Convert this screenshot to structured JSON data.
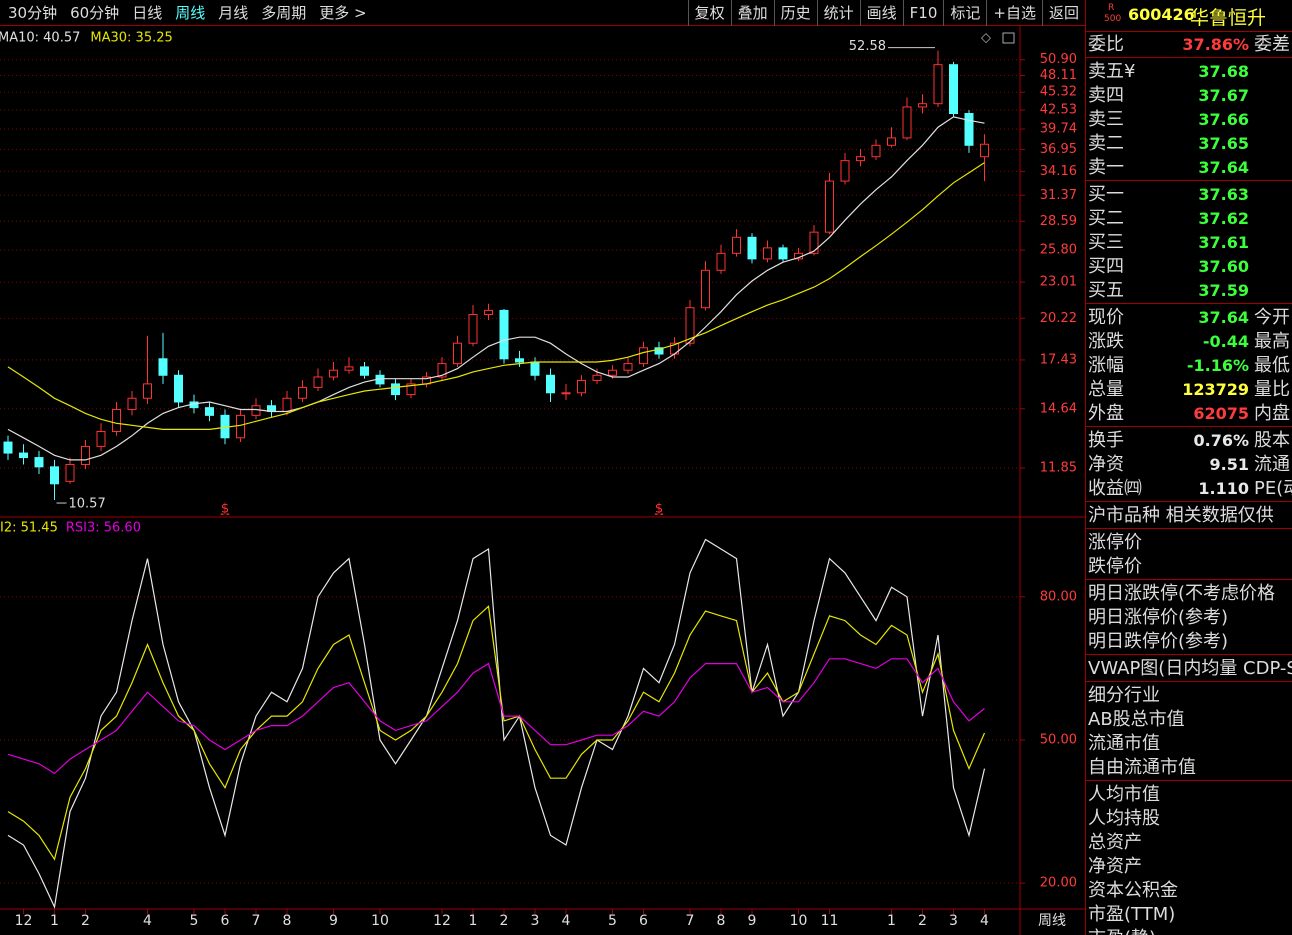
{
  "toolbar": {
    "periods": [
      {
        "label": "30分钟"
      },
      {
        "label": "60分钟"
      },
      {
        "label": "日线"
      },
      {
        "label": "周线",
        "active": true
      },
      {
        "label": "月线"
      },
      {
        "label": "多周期"
      },
      {
        "label": "更多 >"
      }
    ],
    "tools": [
      "复权",
      "叠加",
      "历史",
      "统计",
      "画线",
      "F10",
      "标记",
      "+自选",
      "返回"
    ]
  },
  "chart_data": [
    {
      "type": "candlestick",
      "scale": "log",
      "up_color": "#ff3232",
      "down_color": "#54ffff",
      "grid": true,
      "open": [
        13.0,
        12.5,
        12.3,
        11.9,
        11.3,
        12.0,
        12.8,
        13.5,
        14.6,
        15.2,
        17.5,
        16.5,
        15.0,
        14.7,
        14.3,
        13.2,
        14.3,
        14.8,
        14.5,
        15.2,
        15.8,
        16.4,
        16.8,
        17.0,
        16.5,
        16.0,
        15.4,
        16.0,
        16.4,
        17.2,
        18.5,
        20.5,
        20.8,
        17.5,
        17.3,
        16.5,
        15.5,
        15.5,
        16.2,
        16.5,
        16.8,
        17.2,
        18.2,
        17.8,
        18.5,
        21.0,
        24.0,
        25.5,
        27.0,
        25.0,
        26.0,
        25.0,
        25.5,
        27.5,
        33.0,
        35.5,
        36.0,
        37.5,
        38.5,
        43.0,
        43.5,
        50.0,
        42.0,
        36.0
      ],
      "high": [
        13.3,
        12.9,
        12.6,
        12.2,
        12.3,
        13.1,
        13.9,
        15.0,
        15.6,
        19.0,
        19.2,
        16.8,
        15.4,
        15.0,
        14.6,
        14.6,
        15.2,
        15.1,
        15.6,
        16.2,
        16.9,
        17.3,
        17.6,
        17.3,
        16.8,
        16.3,
        16.3,
        16.7,
        17.6,
        19.0,
        21.2,
        21.3,
        20.9,
        18.0,
        17.6,
        16.9,
        16.0,
        16.5,
        16.9,
        17.1,
        17.6,
        18.6,
        18.6,
        18.9,
        21.6,
        24.8,
        26.3,
        27.8,
        27.4,
        26.7,
        26.3,
        26.0,
        28.2,
        34.0,
        36.5,
        37.0,
        38.3,
        40.0,
        44.5,
        45.0,
        52.58,
        50.5,
        42.5,
        39.0
      ],
      "low": [
        12.2,
        12.0,
        11.6,
        10.57,
        11.2,
        11.8,
        12.6,
        13.3,
        14.3,
        14.9,
        16.0,
        14.7,
        14.4,
        14.0,
        12.9,
        13.0,
        14.1,
        14.2,
        14.3,
        15.0,
        15.6,
        16.2,
        16.6,
        16.3,
        15.8,
        15.1,
        15.2,
        15.8,
        16.2,
        17.0,
        18.3,
        20.1,
        17.2,
        17.0,
        16.2,
        15.0,
        15.1,
        15.3,
        16.0,
        16.3,
        16.6,
        17.0,
        17.5,
        17.5,
        18.3,
        20.8,
        23.7,
        25.2,
        24.6,
        24.7,
        24.7,
        24.8,
        25.3,
        27.3,
        32.6,
        34.8,
        35.6,
        37.2,
        38.2,
        42.0,
        43.0,
        41.5,
        36.5,
        33.0
      ],
      "close": [
        12.5,
        12.3,
        11.9,
        11.2,
        12.0,
        12.8,
        13.5,
        14.6,
        15.2,
        16.0,
        16.5,
        15.0,
        14.7,
        14.3,
        13.2,
        14.3,
        14.8,
        14.5,
        15.2,
        15.8,
        16.4,
        16.8,
        17.0,
        16.5,
        16.0,
        15.4,
        16.0,
        16.4,
        17.2,
        18.5,
        20.5,
        20.8,
        17.5,
        17.3,
        16.5,
        15.5,
        15.5,
        16.2,
        16.5,
        16.8,
        17.2,
        18.2,
        17.8,
        18.5,
        21.0,
        24.0,
        25.5,
        27.0,
        25.0,
        26.0,
        25.0,
        25.5,
        27.5,
        33.0,
        35.5,
        36.0,
        37.5,
        38.5,
        43.0,
        43.5,
        50.0,
        42.0,
        37.5,
        37.64
      ],
      "series": [
        {
          "name": "MA10",
          "label": "MA10: 40.57",
          "color": "#e0e0e0",
          "values": [
            13.6,
            13.2,
            12.8,
            12.4,
            12.2,
            12.2,
            12.4,
            12.8,
            13.3,
            13.9,
            14.4,
            14.7,
            14.9,
            15.0,
            14.8,
            14.6,
            14.6,
            14.5,
            14.5,
            14.7,
            15.0,
            15.4,
            15.8,
            16.1,
            16.3,
            16.3,
            16.3,
            16.3,
            16.5,
            16.9,
            17.6,
            18.3,
            18.7,
            18.9,
            18.9,
            18.5,
            17.8,
            17.2,
            16.7,
            16.4,
            16.4,
            16.8,
            17.2,
            17.8,
            18.6,
            19.6,
            20.7,
            22.0,
            23.1,
            24.0,
            24.7,
            25.1,
            25.7,
            27.0,
            28.7,
            30.4,
            32.0,
            33.5,
            35.5,
            37.5,
            40.0,
            41.5,
            41.0,
            40.57
          ]
        },
        {
          "name": "MA30",
          "label": "MA30: 35.25",
          "color": "#e6e600",
          "values": [
            17.0,
            16.4,
            15.8,
            15.2,
            14.8,
            14.4,
            14.1,
            13.9,
            13.8,
            13.7,
            13.6,
            13.6,
            13.6,
            13.6,
            13.7,
            13.8,
            14.0,
            14.2,
            14.4,
            14.7,
            15.0,
            15.2,
            15.4,
            15.6,
            15.7,
            15.8,
            15.9,
            16.0,
            16.2,
            16.4,
            16.7,
            16.9,
            17.1,
            17.2,
            17.3,
            17.3,
            17.3,
            17.3,
            17.3,
            17.4,
            17.6,
            17.9,
            18.1,
            18.4,
            18.8,
            19.2,
            19.7,
            20.2,
            20.7,
            21.2,
            21.6,
            22.1,
            22.6,
            23.3,
            24.2,
            25.2,
            26.2,
            27.3,
            28.5,
            29.8,
            31.3,
            32.8,
            34.0,
            35.25
          ]
        }
      ],
      "events": [
        null,
        null,
        null,
        null,
        null,
        null,
        null,
        null,
        null,
        null,
        null,
        null,
        null,
        null,
        "$",
        null,
        null,
        null,
        null,
        null,
        null,
        null,
        null,
        null,
        null,
        null,
        null,
        null,
        null,
        null,
        null,
        null,
        null,
        null,
        null,
        null,
        null,
        null,
        null,
        null,
        null,
        null,
        "$",
        null,
        null,
        null,
        null,
        null,
        null,
        null,
        null,
        null,
        null,
        null,
        null,
        null,
        null,
        null,
        null,
        null,
        null,
        null,
        null,
        null
      ],
      "ylim": [
        10.02,
        57.2
      ],
      "yticks": [
        11.85,
        14.64,
        17.43,
        20.22,
        23.01,
        {
          "value": 25.8,
          "label": "25.80"
        },
        28.59,
        31.37,
        34.16,
        36.95,
        39.74,
        42.53,
        45.32,
        48.11,
        {
          "value": 50.9,
          "label": "50.90"
        }
      ]
    },
    {
      "type": "line",
      "grid": true,
      "categories": [
        null,
        "12",
        null,
        "1",
        null,
        "2",
        null,
        null,
        null,
        "4",
        null,
        null,
        "5",
        null,
        "6",
        null,
        "7",
        null,
        "8",
        null,
        null,
        "9",
        null,
        null,
        "10",
        null,
        null,
        null,
        "12",
        null,
        "1",
        null,
        "2",
        null,
        "3",
        null,
        "4",
        null,
        null,
        "5",
        null,
        "6",
        null,
        null,
        "7",
        null,
        "8",
        null,
        "9",
        null,
        null,
        "10",
        null,
        "11",
        null,
        null,
        null,
        "1",
        null,
        "2",
        null,
        "3",
        null,
        "4"
      ],
      "period_label": "周线",
      "series": [
        {
          "color": "#e8e8e8",
          "values": [
            30,
            28,
            22,
            15,
            35,
            42,
            55,
            60,
            75,
            88,
            70,
            58,
            52,
            40,
            30,
            45,
            55,
            60,
            58,
            65,
            80,
            85,
            88,
            70,
            50,
            45,
            50,
            55,
            65,
            75,
            88,
            90,
            50,
            55,
            40,
            30,
            28,
            40,
            50,
            48,
            55,
            65,
            62,
            70,
            85,
            92,
            90,
            88,
            60,
            70,
            55,
            60,
            75,
            88,
            85,
            80,
            75,
            82,
            80,
            55,
            72,
            40,
            30,
            44
          ]
        },
        {
          "name": "I2",
          "label": "I2: 51.45",
          "color": "#e6e600",
          "values": [
            35,
            33,
            30,
            25,
            38,
            44,
            52,
            55,
            62,
            70,
            62,
            55,
            52,
            45,
            40,
            48,
            52,
            55,
            55,
            58,
            65,
            70,
            72,
            62,
            52,
            50,
            52,
            55,
            60,
            66,
            75,
            78,
            54,
            55,
            48,
            42,
            42,
            47,
            50,
            50,
            54,
            60,
            58,
            64,
            72,
            77,
            76,
            75,
            60,
            64,
            58,
            60,
            68,
            76,
            75,
            72,
            70,
            74,
            72,
            60,
            68,
            52,
            44,
            51.45
          ]
        },
        {
          "name": "RSI3",
          "label": "RSI3: 56.60",
          "color": "#e000e0",
          "values": [
            47,
            46,
            45,
            43,
            46,
            48,
            50,
            52,
            56,
            60,
            57,
            54,
            53,
            50,
            48,
            50,
            52,
            53,
            53,
            55,
            58,
            61,
            62,
            58,
            54,
            52,
            53,
            54,
            57,
            60,
            64,
            66,
            55,
            55,
            52,
            49,
            49,
            50,
            51,
            51,
            53,
            56,
            55,
            58,
            63,
            66,
            66,
            66,
            60,
            61,
            58,
            58,
            62,
            67,
            67,
            66,
            65,
            67,
            67,
            62,
            65,
            58,
            54,
            56.6
          ]
        }
      ],
      "ylim": [
        14.8,
        96.5
      ],
      "yticks": [
        {
          "value": 20,
          "label": "20.00"
        },
        {
          "value": 50,
          "label": "50.00"
        },
        {
          "value": 80,
          "label": "80.00"
        }
      ]
    }
  ],
  "quote": {
    "badge": [
      "R",
      "500"
    ],
    "code": "600426",
    "name": "华鲁恒升",
    "groups": [
      [
        {
          "label": "委比",
          "value": "37.86%",
          "color": "#ff3c3c",
          "extra": "委差"
        }
      ],
      [
        {
          "label": "卖五¥",
          "value": "37.68",
          "color": "#3cff3c"
        },
        {
          "label": "卖四",
          "value": "37.67",
          "color": "#3cff3c"
        },
        {
          "label": "卖三",
          "value": "37.66",
          "color": "#3cff3c"
        },
        {
          "label": "卖二",
          "value": "37.65",
          "color": "#3cff3c"
        },
        {
          "label": "卖一",
          "value": "37.64",
          "color": "#3cff3c"
        }
      ],
      [
        {
          "label": "买一",
          "value": "37.63",
          "color": "#3cff3c"
        },
        {
          "label": "买二",
          "value": "37.62",
          "color": "#3cff3c"
        },
        {
          "label": "买三",
          "value": "37.61",
          "color": "#3cff3c"
        },
        {
          "label": "买四",
          "value": "37.60",
          "color": "#3cff3c"
        },
        {
          "label": "买五",
          "value": "37.59",
          "color": "#3cff3c"
        }
      ],
      [
        {
          "label": "现价",
          "value": "37.64",
          "color": "#3cff3c",
          "extra": "今开"
        },
        {
          "label": "涨跌",
          "value": "-0.44",
          "color": "#3cff3c",
          "extra": "最高"
        },
        {
          "label": "涨幅",
          "value": "-1.16%",
          "color": "#3cff3c",
          "extra": "最低"
        },
        {
          "label": "总量",
          "value": "123729",
          "color": "#ffff3c",
          "extra": "量比"
        },
        {
          "label": "外盘",
          "value": "62075",
          "color": "#ff3c3c",
          "extra": "内盘"
        }
      ],
      [
        {
          "label": "换手",
          "value": "0.76%",
          "color": "#e8e8e8",
          "extra": "股本"
        },
        {
          "label": "净资",
          "value": "9.51",
          "color": "#e8e8e8",
          "extra": "流通"
        },
        {
          "label": "收益㈣",
          "value": "1.110",
          "color": "#e8e8e8",
          "extra": "PE(动"
        }
      ],
      [
        {
          "label": "沪市品种  相关数据仅供"
        }
      ],
      [
        {
          "label": "涨停价"
        },
        {
          "label": "跌停价"
        }
      ],
      [
        {
          "label": "明日涨跌停(不考虑价格"
        },
        {
          "label": "明日涨停价(参考)"
        },
        {
          "label": "明日跌停价(参考)"
        }
      ],
      [
        {
          "label": "VWAP图(日内均量 CDP-S"
        }
      ],
      [
        {
          "label": "细分行业"
        },
        {
          "label": "AB股总市值"
        },
        {
          "label": "流通市值"
        },
        {
          "label": "自由流通市值"
        }
      ],
      [
        {
          "label": "人均市值"
        },
        {
          "label": "人均持股"
        },
        {
          "label": "总资产"
        },
        {
          "label": "净资产"
        },
        {
          "label": "资本公积金"
        },
        {
          "label": "市盈(TTM)"
        },
        {
          "label": "市盈(静)"
        }
      ]
    ]
  }
}
